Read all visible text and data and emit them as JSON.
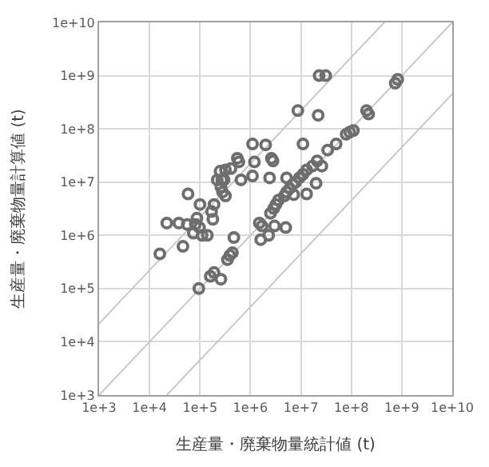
{
  "chart_data": {
    "type": "scatter",
    "xlabel": "生産量・廃棄物量統計値 (t)",
    "ylabel": "生産量・廃棄物量計算値 (t)",
    "log": "xy",
    "grid": true,
    "xlim": [
      1000,
      10000000000
    ],
    "ylim": [
      1000,
      10000000000
    ],
    "xticks": [
      {
        "value": 1000,
        "label": "1e+3"
      },
      {
        "value": 10000,
        "label": "1e+4"
      },
      {
        "value": 100000,
        "label": "1e+5"
      },
      {
        "value": 1000000,
        "label": "1e+6"
      },
      {
        "value": 10000000,
        "label": "1e+7"
      },
      {
        "value": 100000000,
        "label": "1e+8"
      },
      {
        "value": 1000000000,
        "label": "1e+9"
      },
      {
        "value": 10000000000,
        "label": "1e+10"
      }
    ],
    "yticks": [
      {
        "value": 1000,
        "label": "1e+3"
      },
      {
        "value": 10000,
        "label": "1e+4"
      },
      {
        "value": 100000,
        "label": "1e+5"
      },
      {
        "value": 1000000,
        "label": "1e+6"
      },
      {
        "value": 10000000,
        "label": "1e+7"
      },
      {
        "value": 100000000,
        "label": "1e+8"
      },
      {
        "value": 1000000000,
        "label": "1e+9"
      },
      {
        "value": 10000000000,
        "label": "1e+10"
      }
    ],
    "series": [
      {
        "type": "line",
        "marker": "none",
        "color": "#c8c8c8",
        "x": [
          1000,
          450000000
        ],
        "values": [
          22000,
          10000000000
        ]
      },
      {
        "type": "line",
        "marker": "none",
        "color": "#c8c8c8",
        "x": [
          1000,
          10000000000
        ],
        "values": [
          1000,
          10000000000
        ]
      },
      {
        "type": "line",
        "marker": "none",
        "color": "#c8c8c8",
        "x": [
          22000,
          10000000000
        ],
        "values": [
          1000,
          450000000
        ]
      },
      {
        "marker": "circle",
        "color": "#6e6e6e",
        "x": [
          23000000.0,
          31000000.0,
          740000000.0,
          830000000.0,
          8700000.0,
          22000000.0,
          220000000.0,
          200000000.0,
          110000000.0,
          93000000.0,
          79000000.0,
          50000000.0,
          34000000.0,
          11000000.0,
          1100000.0,
          2000000.0,
          2600000.0,
          2800000.0,
          550000.0,
          590000.0,
          1200000.0,
          250000.0,
          320000.0,
          410000.0,
          220000.0,
          270000.0,
          650000.0,
          1100000.0,
          2400000.0,
          5200000.0,
          21000000.0,
          17000000.0,
          13000000.0,
          11000000.0,
          9300000.0,
          7900000.0,
          6900000.0,
          6000000.0,
          5200000.0,
          4700000.0,
          26000000.0,
          20000000.0,
          13000000.0,
          7200000.0,
          3600000.0,
          3200000.0,
          2900000.0,
          2500000.0,
          300000.0,
          260000.0,
          280000.0,
          320000.0,
          58000.0,
          100000.0,
          190000.0,
          170000.0,
          87000.0,
          180000.0,
          22000.0,
          38000.0,
          56000.0,
          81000.0,
          98000.0,
          1500000.0,
          1700000.0,
          3000000.0,
          5000000.0,
          74000.0,
          110000.0,
          140000.0,
          470000.0,
          1600000.0,
          2300000.0,
          16000.0,
          46000.0,
          390000.0,
          440000.0,
          350000.0,
          160000.0,
          190000.0,
          260000.0,
          95000.0
        ],
        "values": [
          1000000000.0,
          1000000000.0,
          720000000.0,
          850000000.0,
          220000000.0,
          180000000.0,
          190000000.0,
          220000000.0,
          93000000.0,
          87000000.0,
          79000000.0,
          52000000.0,
          40000000.0,
          52000000.0,
          52000000.0,
          50000000.0,
          28000000.0,
          25000000.0,
          28000000.0,
          24000000.0,
          24000000.0,
          16000000.0,
          17000000.0,
          18000000.0,
          11000000.0,
          11000000.0,
          11000000.0,
          13000000.0,
          12000000.0,
          12000000.0,
          25000000.0,
          20000000.0,
          17000000.0,
          14000000.0,
          12000000.0,
          10000000.0,
          9100000.0,
          7600000.0,
          6500000.0,
          5500000.0,
          20000000.0,
          9500000.0,
          6000000.0,
          5800000.0,
          4600000.0,
          3800000.0,
          3200000.0,
          2600000.0,
          11000000.0,
          8100000.0,
          6500000.0,
          5500000.0,
          6000000.0,
          3800000.0,
          3800000.0,
          2800000.0,
          2100000.0,
          2000000.0,
          1700000.0,
          1700000.0,
          1600000.0,
          1600000.0,
          1400000.0,
          1700000.0,
          1500000.0,
          1500000.0,
          1400000.0,
          1100000.0,
          1000000.0,
          1000000.0,
          910000.0,
          830000.0,
          1000000.0,
          450000.0,
          620000.0,
          420000.0,
          470000.0,
          350000.0,
          170000.0,
          200000.0,
          150000.0,
          100000.0
        ]
      }
    ]
  }
}
